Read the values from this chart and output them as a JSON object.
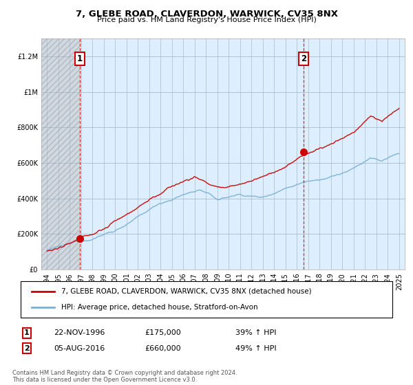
{
  "title": "7, GLEBE ROAD, CLAVERDON, WARWICK, CV35 8NX",
  "subtitle": "Price paid vs. HM Land Registry's House Price Index (HPI)",
  "legend_line1": "7, GLEBE ROAD, CLAVERDON, WARWICK, CV35 8NX (detached house)",
  "legend_line2": "HPI: Average price, detached house, Stratford-on-Avon",
  "footnote": "Contains HM Land Registry data © Crown copyright and database right 2024.\nThis data is licensed under the Open Government Licence v3.0.",
  "purchase1_date": 1996.9,
  "purchase1_price": 175000,
  "purchase2_date": 2016.6,
  "purchase2_price": 660000,
  "p1_date_str": "22-NOV-1996",
  "p1_price_str": "£175,000",
  "p1_hpi_str": "39% ↑ HPI",
  "p2_date_str": "05-AUG-2016",
  "p2_price_str": "£660,000",
  "p2_hpi_str": "49% ↑ HPI",
  "ylim": [
    0,
    1300000
  ],
  "xlim_start": 1993.5,
  "xlim_end": 2025.5,
  "red_color": "#cc0000",
  "blue_color": "#7ab0d4",
  "chart_bg": "#ddeeff",
  "hatch_bg": "#c8ccd0",
  "background_color": "#ffffff",
  "grid_color": "#aabbcc"
}
